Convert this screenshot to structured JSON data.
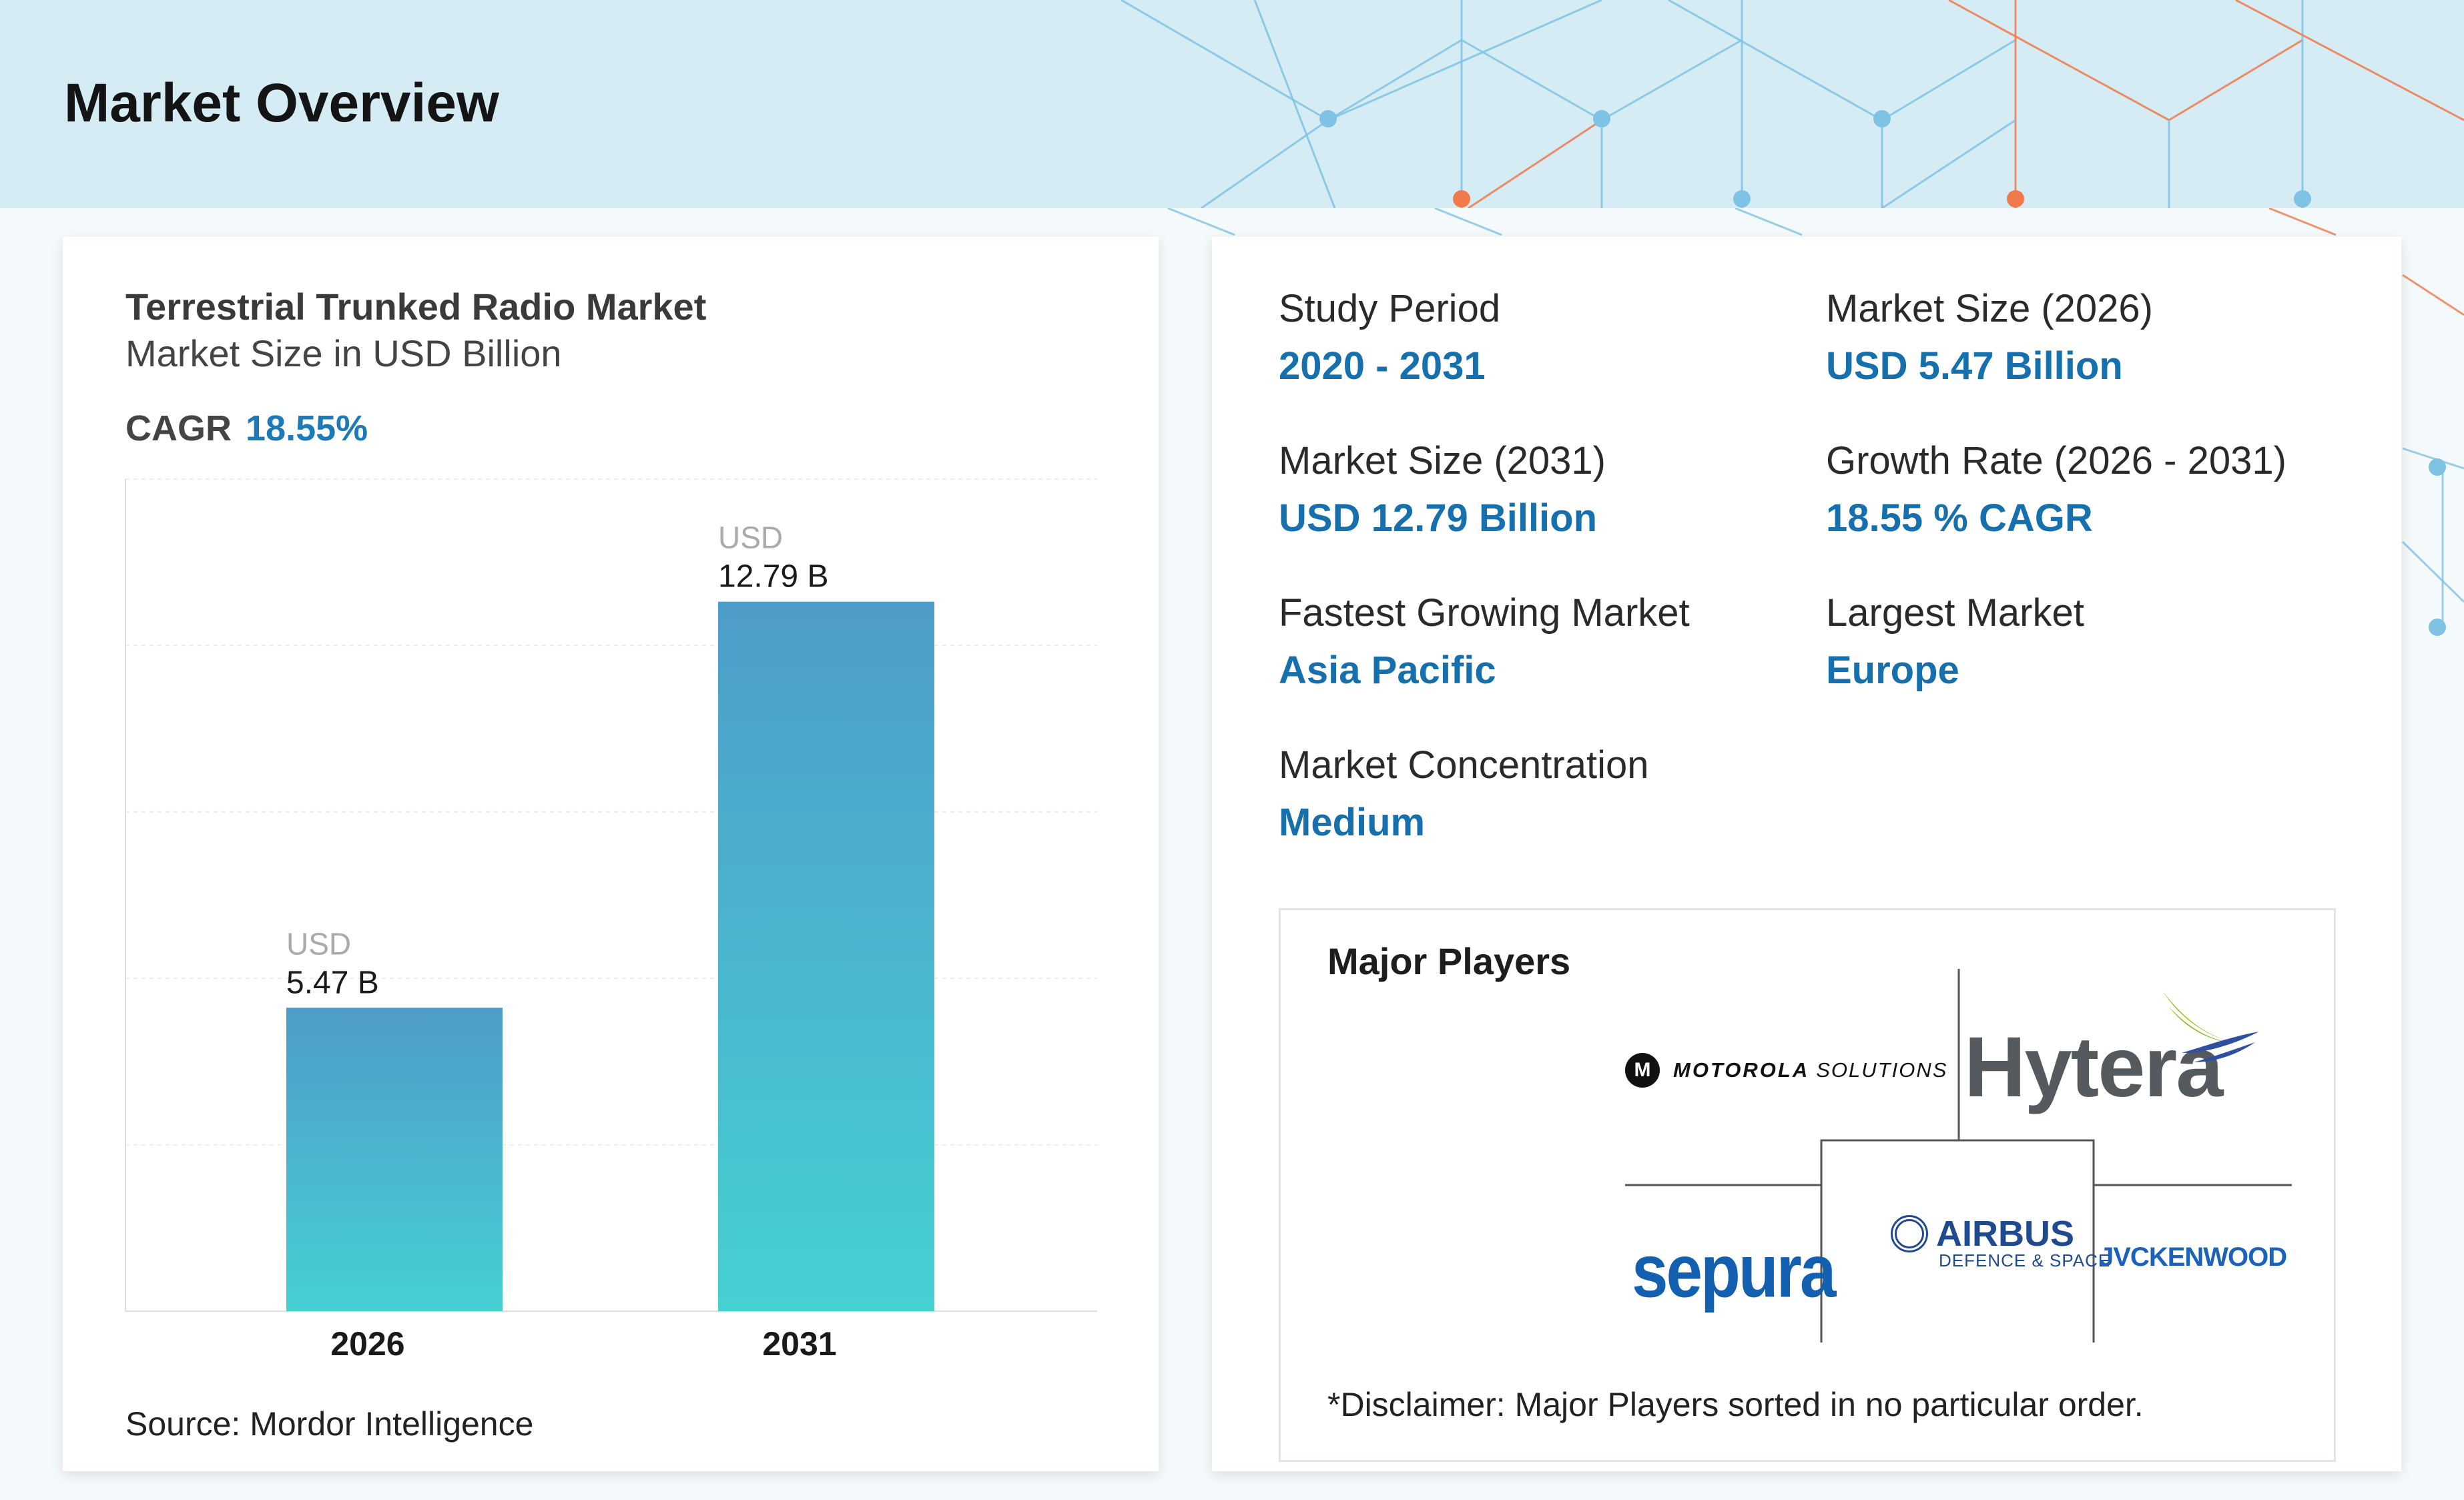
{
  "page": {
    "title": "Market Overview"
  },
  "chart_card": {
    "title": "Terrestrial Trunked Radio Market",
    "subtitle": "Market Size in USD Billion",
    "cagr_label": "CAGR",
    "cagr_value": "18.55%",
    "source": "Source: Mordor Intelligence"
  },
  "chart_data": {
    "type": "bar",
    "categories": [
      "2026",
      "2031"
    ],
    "values": [
      5.47,
      12.79
    ],
    "value_labels": [
      {
        "prefix": "USD",
        "value": "5.47 B"
      },
      {
        "prefix": "USD",
        "value": "12.79 B"
      }
    ],
    "title": "Terrestrial Trunked Radio Market",
    "subtitle": "Market Size in USD Billion",
    "xlabel": "",
    "ylabel": "",
    "ylim": [
      0,
      15
    ],
    "grid": true,
    "legend": "none",
    "colors": {
      "bar_top": "#4e9cc9",
      "bar_bottom": "#45d0d2"
    }
  },
  "stats": [
    {
      "label": "Study Period",
      "value": "2020 - 2031"
    },
    {
      "label": "Market Size (2026)",
      "value": "USD 5.47 Billion"
    },
    {
      "label": "Market Size (2031)",
      "value": "USD 12.79 Billion"
    },
    {
      "label": "Growth Rate (2026 - 2031)",
      "value": "18.55 % CAGR"
    },
    {
      "label": "Fastest Growing Market",
      "value": "Asia Pacific"
    },
    {
      "label": "Largest Market",
      "value": "Europe"
    },
    {
      "label": "Market Concentration",
      "value": "Medium"
    }
  ],
  "players": {
    "title": "Major Players",
    "logos": {
      "motorola_mark": "M",
      "motorola": "MOTOROLA",
      "motorola_sub": "SOLUTIONS",
      "hytera": "Hytera",
      "sepura": "sepura",
      "airbus": "AIRBUS",
      "airbus_sub": "DEFENCE & SPACE",
      "jvc": "JVCKENWOOD"
    },
    "disclaimer": "*Disclaimer: Major Players sorted in no particular order."
  },
  "colors": {
    "accent": "#1670ad",
    "header_bg": "#d6ecf5",
    "pattern_blue": "#7fc3e4",
    "pattern_orange": "#f07a4a"
  }
}
